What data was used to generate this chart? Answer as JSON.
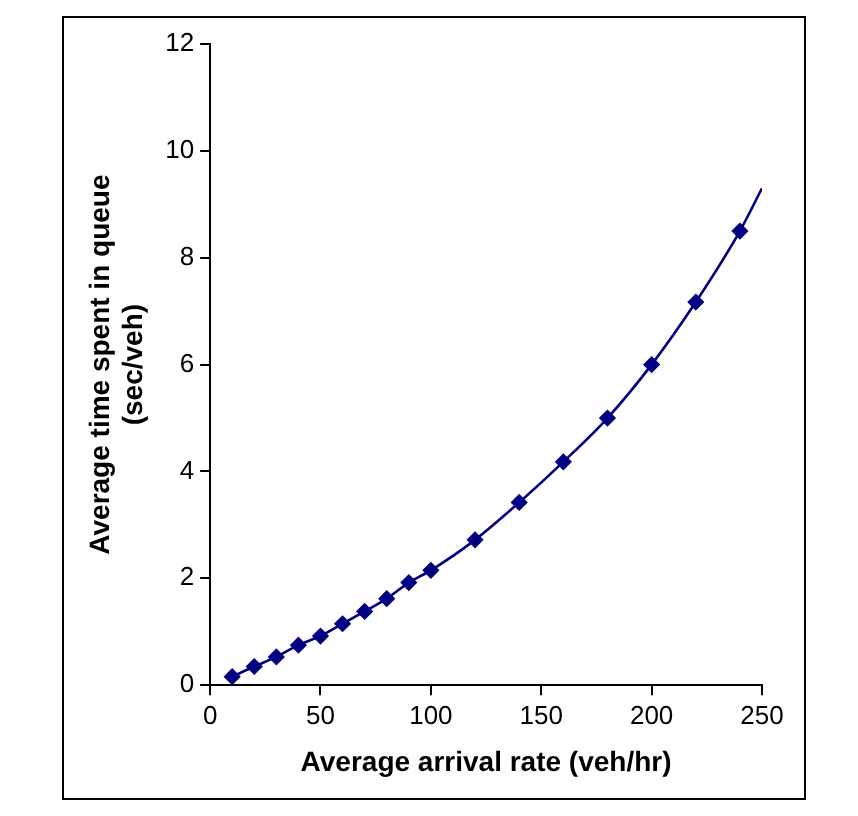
{
  "chart_data": {
    "type": "line",
    "xlabel": "Average arrival rate (veh/hr)",
    "ylabel": "Average time spent in queue\n(sec/veh)",
    "xlim": [
      0,
      250
    ],
    "xticks": [
      0,
      50,
      100,
      150,
      200,
      250
    ],
    "ylim": [
      0,
      12
    ],
    "yticks": [
      0,
      2,
      4,
      6,
      8,
      10,
      12
    ],
    "grid": false,
    "legend": false,
    "series": [
      {
        "type": "line",
        "marker": "none",
        "color": "#000080",
        "x": [
          10,
          20,
          30,
          40,
          50,
          60,
          70,
          80,
          90,
          100,
          120,
          140,
          160,
          180,
          200,
          220,
          240,
          250
        ],
        "values": [
          0.16,
          0.35,
          0.53,
          0.75,
          0.92,
          1.15,
          1.38,
          1.62,
          1.92,
          2.15,
          2.72,
          3.42,
          4.18,
          5.0,
          6.0,
          7.17,
          8.5,
          9.3
        ]
      },
      {
        "type": "scatter",
        "marker": "diamond",
        "color": "#000080",
        "x": [
          10,
          20,
          30,
          40,
          50,
          60,
          70,
          80,
          90,
          100,
          120,
          140,
          160,
          180,
          200,
          220,
          240
        ],
        "values": [
          0.16,
          0.35,
          0.53,
          0.75,
          0.92,
          1.15,
          1.38,
          1.62,
          1.92,
          2.15,
          2.72,
          3.42,
          4.18,
          5.0,
          6.0,
          7.17,
          8.5
        ]
      }
    ]
  }
}
